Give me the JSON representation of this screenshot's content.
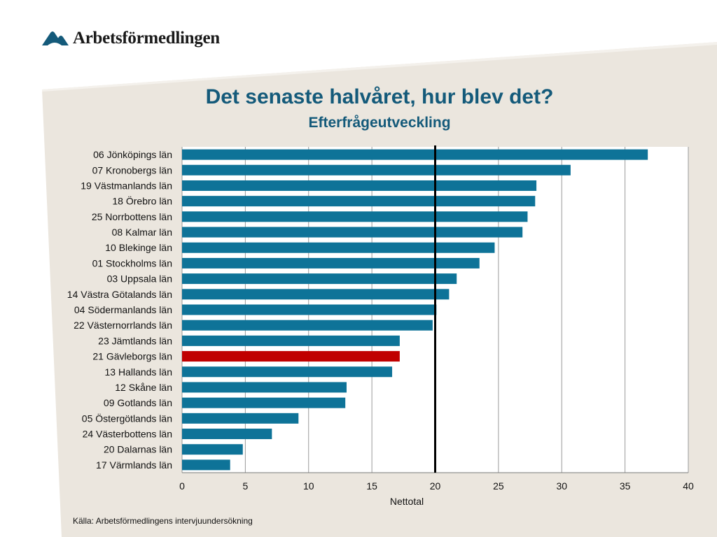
{
  "header": {
    "logo_text": "Arbetsförmedlingen",
    "title": "Det senaste halvåret, hur blev det?",
    "subtitle": "Efterfrågeutveckling"
  },
  "footer": {
    "source": "Källa: Arbetsförmedlingens intervjuundersökning"
  },
  "colors": {
    "title": "#145a7a",
    "bar": "#0e7398",
    "highlight_bar": "#c00000",
    "reference_line": "#000000",
    "background_band": "#ebe6de"
  },
  "chart_data": {
    "type": "bar",
    "orientation": "horizontal",
    "categories": [
      "06 Jönköpings län",
      "07 Kronobergs län",
      "19 Västmanlands län",
      "18 Örebro län",
      "25 Norrbottens län",
      "08 Kalmar län",
      "10 Blekinge län",
      "01 Stockholms län",
      "03 Uppsala län",
      "14 Västra Götalands län",
      "04 Södermanlands län",
      "22 Västernorrlands län",
      "23 Jämtlands län",
      "21 Gävleborgs län",
      "13 Hallands län",
      "12 Skåne län",
      "09 Gotlands län",
      "05 Östergötlands län",
      "24 Västerbottens län",
      "20 Dalarnas län",
      "17 Värmlands län"
    ],
    "values": [
      36.8,
      30.7,
      28.0,
      27.9,
      27.3,
      26.9,
      24.7,
      23.5,
      21.7,
      21.1,
      20.1,
      19.8,
      17.2,
      17.2,
      16.6,
      13.0,
      12.9,
      9.2,
      7.1,
      4.8,
      3.8
    ],
    "highlight": "21 Gävleborgs län",
    "reference_line": 20,
    "xlabel": "Nettotal",
    "xlim": [
      0,
      40
    ],
    "xticks": [
      0,
      5,
      10,
      15,
      20,
      25,
      30,
      35,
      40
    ],
    "grid": true
  }
}
